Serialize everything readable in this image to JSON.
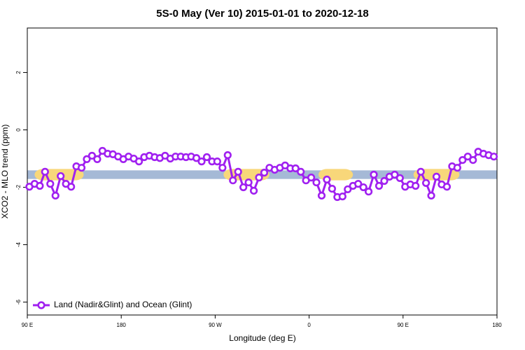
{
  "chart_data": {
    "type": "line",
    "title": "5S-0 May (Ver 10)   2015-01-01 to 2020-12-18",
    "xlabel": "Longitude (deg E)",
    "ylabel": "XCO2 - MLO trend (ppm)",
    "xlim": [
      90,
      540
    ],
    "ylim": [
      -6.45,
      3.55
    ],
    "xticks": [
      {
        "value": 90,
        "label": "90 E"
      },
      180,
      {
        "value": 270,
        "label": "90 W"
      },
      {
        "value": 360,
        "label": "0"
      },
      {
        "value": 450,
        "label": "90 E"
      },
      {
        "value": 540,
        "label": "180"
      }
    ],
    "yticks": [
      -6,
      -4,
      -2,
      0,
      2
    ],
    "band": {
      "ylim": [
        -1.71,
        -1.41
      ],
      "color": "#a5b9d6",
      "land_ranges": [
        [
          97,
          144
        ],
        [
          278,
          322
        ],
        [
          369,
          402
        ],
        [
          460,
          504
        ]
      ],
      "land_color": "#f8d77a"
    },
    "legend": "bottom-left",
    "x": [
      92,
      97,
      102,
      107,
      112,
      117,
      122,
      127,
      132,
      137,
      142,
      147,
      152,
      157,
      162,
      167,
      172,
      177,
      182,
      187,
      192,
      197,
      202,
      207,
      212,
      217,
      222,
      227,
      232,
      237,
      242,
      247,
      252,
      257,
      262,
      267,
      272,
      277,
      282,
      287,
      292,
      297,
      302,
      307,
      312,
      317,
      322,
      327,
      332,
      337,
      342,
      347,
      352,
      357,
      362,
      367,
      372,
      377,
      382,
      387,
      392,
      397,
      402,
      407,
      412,
      417,
      422,
      427,
      432,
      437,
      442,
      447,
      452,
      457,
      462,
      467,
      472,
      477,
      482,
      487,
      492,
      497,
      502,
      507,
      512,
      517,
      522,
      527,
      532,
      537
    ],
    "series": [
      {
        "name": "Land (Nadir&Glint) and Ocean (Glint)",
        "color": "#a020f0",
        "values": [
          -1.98,
          -1.88,
          -1.95,
          -1.46,
          -1.88,
          -2.29,
          -1.61,
          -1.88,
          -1.98,
          -1.27,
          -1.32,
          -1.02,
          -0.9,
          -1.02,
          -0.73,
          -0.83,
          -0.85,
          -0.93,
          -1.02,
          -0.93,
          -1.0,
          -1.1,
          -0.95,
          -0.9,
          -0.95,
          -0.98,
          -0.9,
          -1.0,
          -0.93,
          -0.93,
          -0.95,
          -0.93,
          -0.98,
          -1.1,
          -0.95,
          -1.1,
          -1.1,
          -1.32,
          -0.88,
          -1.76,
          -1.46,
          -2.0,
          -1.83,
          -2.12,
          -1.66,
          -1.49,
          -1.32,
          -1.39,
          -1.32,
          -1.24,
          -1.34,
          -1.34,
          -1.46,
          -1.76,
          -1.66,
          -1.83,
          -2.29,
          -1.73,
          -2.05,
          -2.34,
          -2.32,
          -2.07,
          -1.95,
          -1.88,
          -2.0,
          -2.15,
          -1.56,
          -1.95,
          -1.78,
          -1.63,
          -1.56,
          -1.68,
          -1.98,
          -1.9,
          -1.95,
          -1.46,
          -1.85,
          -2.29,
          -1.63,
          -1.9,
          -1.98,
          -1.27,
          -1.32,
          -1.05,
          -0.93,
          -1.05,
          -0.76,
          -0.83,
          -0.88,
          -0.93
        ]
      }
    ]
  }
}
